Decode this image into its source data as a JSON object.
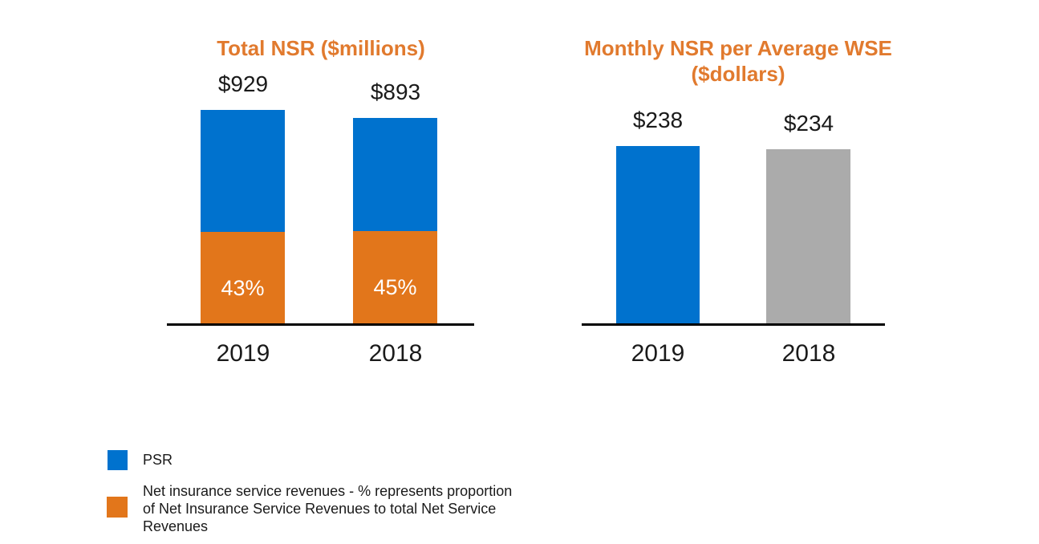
{
  "page": {
    "background": "#FFFFFF"
  },
  "colors": {
    "psr_blue": "#0072CE",
    "insurance_orange": "#E2761B",
    "prior_year_gray": "#ABABAB",
    "title_orange": "#E17A2E",
    "axis_black": "#000000",
    "label_black": "#1A1A1A",
    "pct_label_white": "#FFFFFF"
  },
  "chart_data": [
    {
      "type": "bar",
      "subtype": "stacked",
      "title": "Total NSR ($millions)",
      "unit": "$millions",
      "categories": [
        "2019",
        "2018"
      ],
      "totals": [
        929,
        893
      ],
      "total_labels": [
        "$929",
        "$893"
      ],
      "series": [
        {
          "name": "PSR",
          "share_pct": [
            57,
            55
          ],
          "color": "#0072CE"
        },
        {
          "name": "Net insurance service revenues",
          "share_pct": [
            43,
            45
          ],
          "color": "#E2761B"
        }
      ],
      "segment_labels": [
        "43%",
        "45%"
      ],
      "grid": false,
      "value_axis_visible": false,
      "legend_position": "bottom-left"
    },
    {
      "type": "bar",
      "title": "Monthly NSR per Average WSE ($dollars)",
      "title_lines": [
        "Monthly NSR per Average WSE",
        "($dollars)"
      ],
      "unit": "$dollars",
      "categories": [
        "2019",
        "2018"
      ],
      "values": [
        238,
        234
      ],
      "value_labels": [
        "$238",
        "$234"
      ],
      "bar_colors": [
        "#0072CE",
        "#ABABAB"
      ],
      "grid": false,
      "value_axis_visible": false
    }
  ],
  "legend": {
    "items": [
      {
        "label": "PSR",
        "color": "#0072CE"
      },
      {
        "label": "Net insurance service revenues - % represents proportion of Net Insurance Service Revenues to total Net Service Revenues",
        "color": "#E2761B"
      }
    ]
  }
}
